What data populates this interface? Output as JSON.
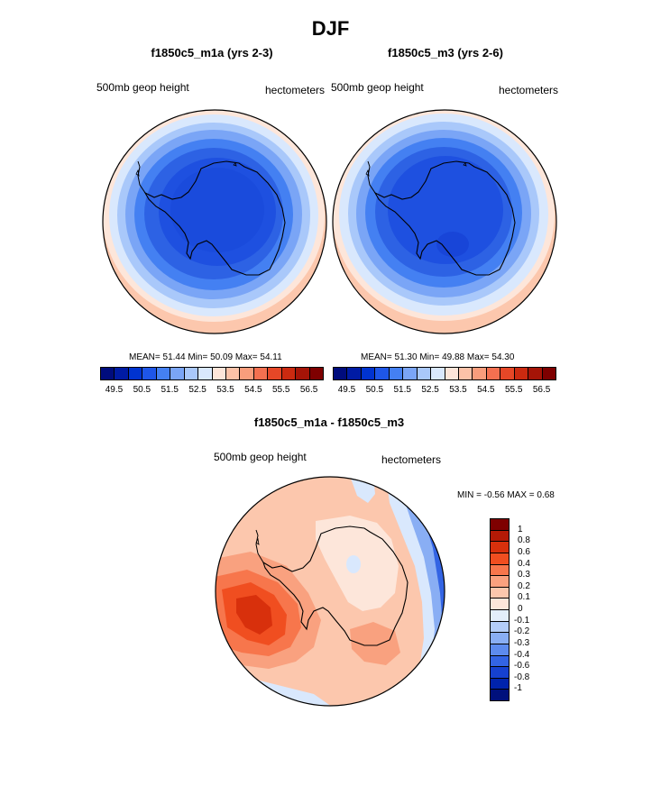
{
  "figure": {
    "title": "DJF"
  },
  "chart_data": [
    {
      "type": "heatmap",
      "projection": "south-polar-stereographic",
      "title": "f1850c5_m1a (yrs 2-3)",
      "left_label": "500mb geop height",
      "right_label": "hectometers",
      "stats": {
        "mean_label": "MEAN=",
        "mean": "51.44",
        "min_label": "Min=",
        "min": "50.09",
        "max_label": "Max=",
        "max": "54.11"
      },
      "colorbar": {
        "orientation": "horizontal",
        "levels": [
          "49.5",
          "50.5",
          "51.5",
          "52.5",
          "53.5",
          "54.5",
          "55.5",
          "56.5"
        ],
        "colors": [
          "#000c7d",
          "#001ba4",
          "#0033d0",
          "#1e56e8",
          "#4480f2",
          "#7aa5f6",
          "#a9c8fa",
          "#d9e8fd",
          "#fde5d9",
          "#fcc2a8",
          "#f99d7c",
          "#f47050",
          "#e64727",
          "#cb2a10",
          "#a51407",
          "#7e0000"
        ]
      }
    },
    {
      "type": "heatmap",
      "projection": "south-polar-stereographic",
      "title": "f1850c5_m3 (yrs 2-6)",
      "left_label": "500mb geop height",
      "right_label": "hectometers",
      "stats": {
        "mean_label": "MEAN=",
        "mean": "51.30",
        "min_label": "Min=",
        "min": "49.88",
        "max_label": "Max=",
        "max": "54.30"
      },
      "colorbar": {
        "orientation": "horizontal",
        "levels": [
          "49.5",
          "50.5",
          "51.5",
          "52.5",
          "53.5",
          "54.5",
          "55.5",
          "56.5"
        ],
        "colors": [
          "#000c7d",
          "#001ba4",
          "#0033d0",
          "#1e56e8",
          "#4480f2",
          "#7aa5f6",
          "#a9c8fa",
          "#d9e8fd",
          "#fde5d9",
          "#fcc2a8",
          "#f99d7c",
          "#f47050",
          "#e64727",
          "#cb2a10",
          "#a51407",
          "#7e0000"
        ]
      }
    },
    {
      "type": "heatmap",
      "projection": "south-polar-stereographic",
      "title": "f1850c5_m1a - f1850c5_m3",
      "left_label": "500mb geop height",
      "right_label": "hectometers",
      "stats": {
        "min_label": "MIN =",
        "min": "-0.56",
        "max_label": "MAX =",
        "max": "0.68"
      },
      "colorbar": {
        "orientation": "vertical",
        "levels": [
          "1",
          "0.8",
          "0.6",
          "0.4",
          "0.3",
          "0.2",
          "0.1",
          "0",
          "-0.1",
          "-0.2",
          "-0.3",
          "-0.4",
          "-0.6",
          "-0.8",
          "-1"
        ],
        "colors": [
          "#7e0000",
          "#b41a06",
          "#d8300c",
          "#f04e20",
          "#f7764c",
          "#f9a17f",
          "#fcc7ad",
          "#fde6da",
          "#e3eefb",
          "#b4cdf8",
          "#89aef4",
          "#5d8bee",
          "#3364e4",
          "#1641d0",
          "#0023ac",
          "#00107c"
        ]
      }
    }
  ]
}
